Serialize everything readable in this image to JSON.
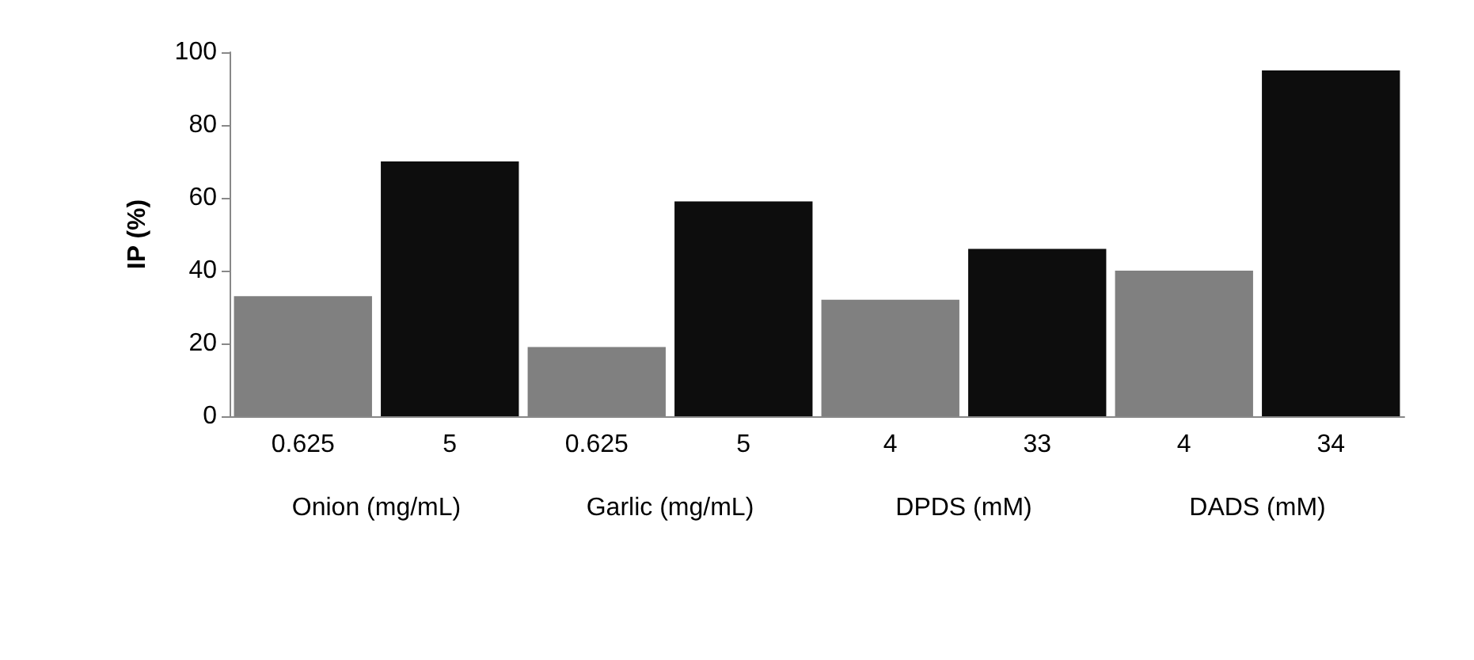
{
  "chart_data": {
    "type": "bar",
    "ylabel": "IP (%)",
    "categories": [
      "0.625",
      "5",
      "0.625",
      "5",
      "4",
      "33",
      "4",
      "34"
    ],
    "values": [
      33,
      70,
      19,
      59,
      32,
      46,
      40,
      95
    ],
    "colors": [
      "#808080",
      "#0d0d0d",
      "#808080",
      "#0d0d0d",
      "#808080",
      "#0d0d0d",
      "#808080",
      "#0d0d0d"
    ],
    "annotations": [
      "Onion (mg/mL)",
      "Garlic (mg/mL)",
      "DPDS (mM)",
      "DADS (mM)"
    ],
    "ylim": [
      0,
      100
    ],
    "yticks": [
      0,
      20,
      40,
      60,
      80,
      100
    ],
    "grid": false
  }
}
